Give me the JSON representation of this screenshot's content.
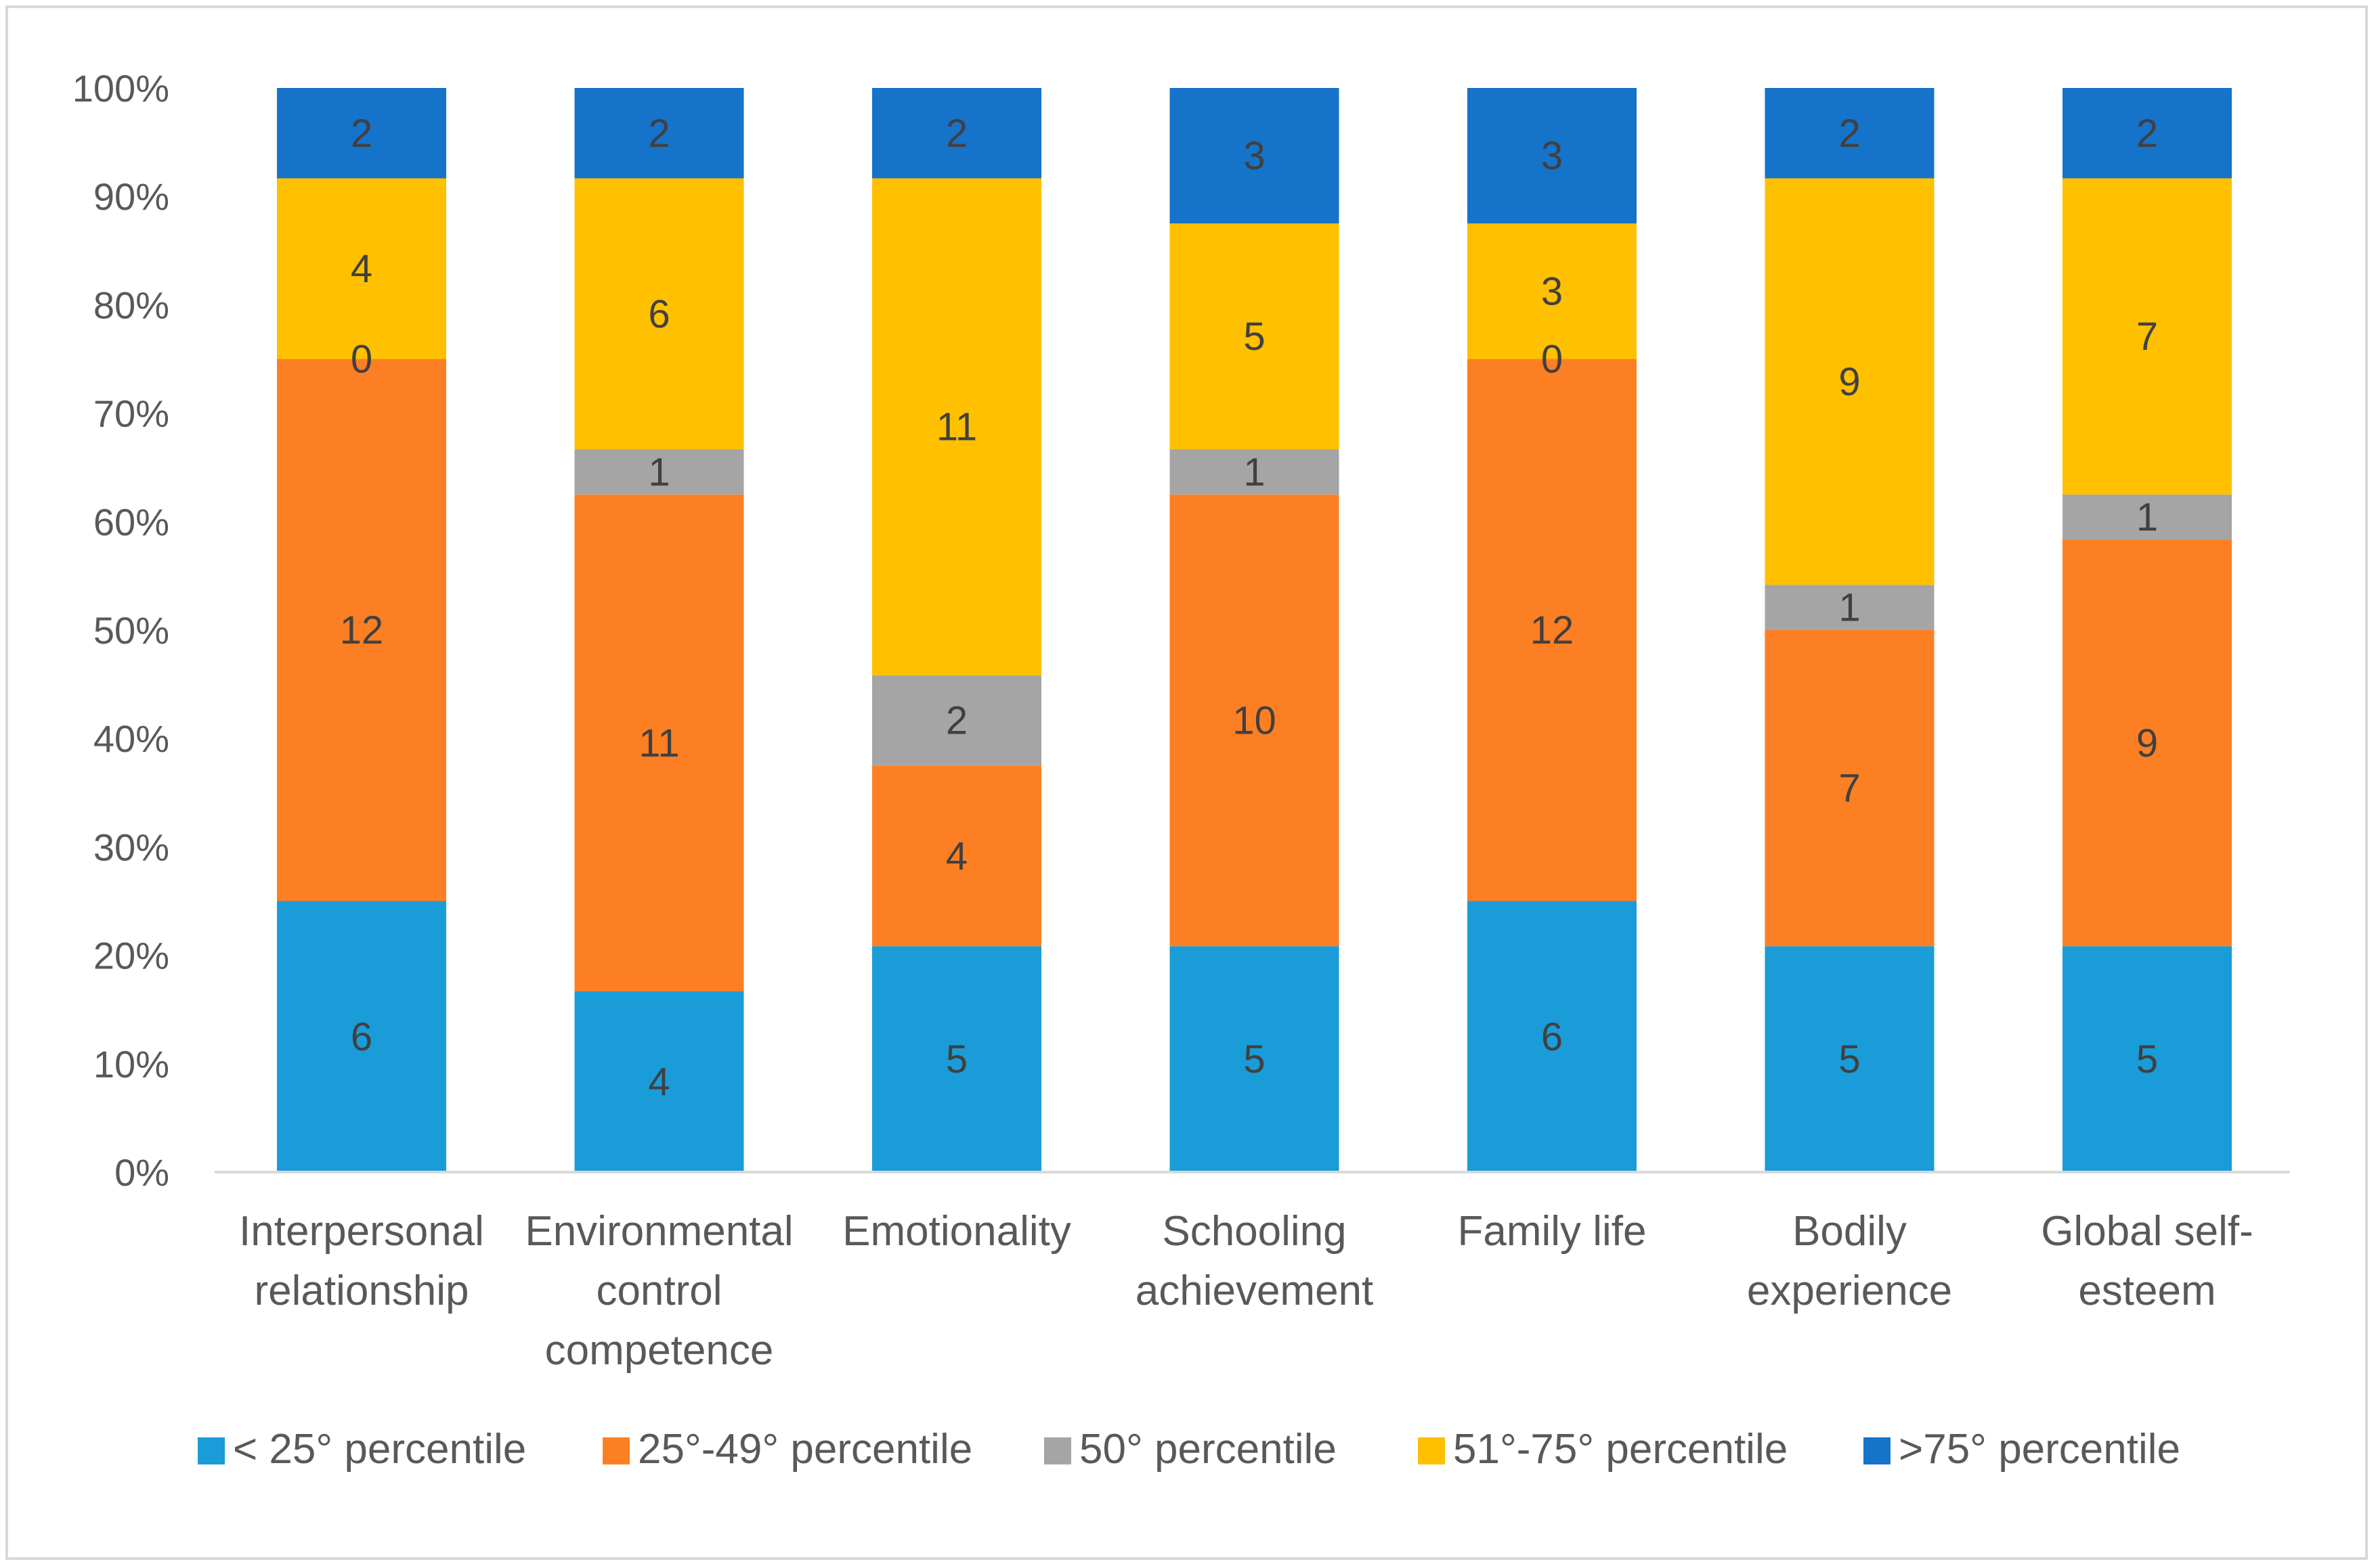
{
  "chart_data": {
    "type": "bar",
    "stacked": "percent",
    "title": "",
    "xlabel": "",
    "ylabel": "",
    "ylim": [
      0,
      100
    ],
    "yticks": [
      "0%",
      "10%",
      "20%",
      "30%",
      "40%",
      "50%",
      "60%",
      "70%",
      "80%",
      "90%",
      "100%"
    ],
    "grid": false,
    "legend_position": "bottom",
    "categories": [
      [
        "Interpersonal",
        "relationship"
      ],
      [
        "Environmental",
        "control",
        "competence"
      ],
      [
        "Emotionality"
      ],
      [
        "Schooling",
        "achievement"
      ],
      [
        "Family life"
      ],
      [
        "Bodily",
        "experience"
      ],
      [
        "Global self-",
        "esteem"
      ]
    ],
    "series": [
      {
        "name": "< 25° percentile",
        "color": "#1a9cd8",
        "values": [
          6,
          4,
          5,
          5,
          6,
          5,
          5
        ]
      },
      {
        "name": "25°-49° percentile",
        "color": "#fd7f24",
        "values": [
          12,
          11,
          4,
          10,
          12,
          7,
          9
        ]
      },
      {
        "name": "50° percentile",
        "color": "#a5a5a5",
        "values": [
          0,
          1,
          2,
          1,
          0,
          1,
          1
        ]
      },
      {
        "name": "51°-75° percentile",
        "color": "#ffc000",
        "values": [
          4,
          6,
          11,
          5,
          3,
          9,
          7
        ]
      },
      {
        "name": ">75° percentile",
        "color": "#1573c9",
        "values": [
          2,
          2,
          2,
          3,
          3,
          2,
          2
        ]
      }
    ]
  }
}
